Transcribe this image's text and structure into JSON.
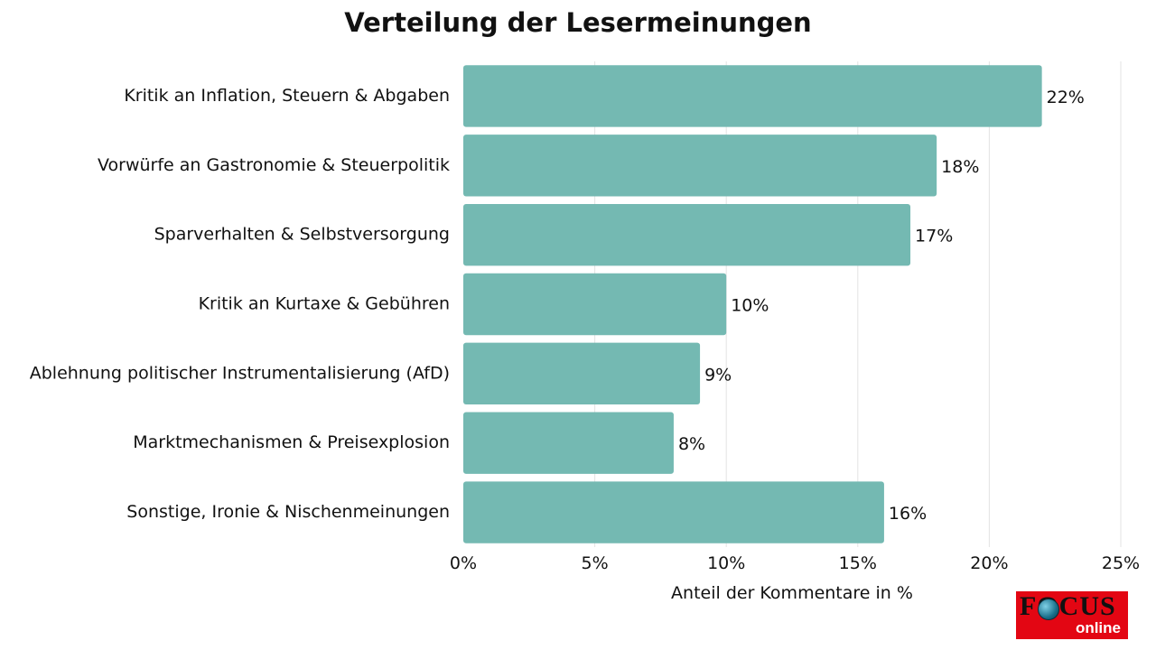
{
  "chart_data": {
    "type": "bar",
    "orientation": "horizontal",
    "title": "Verteilung der Lesermeinungen",
    "xlabel": "Anteil der Kommentare in %",
    "ylabel": "",
    "categories": [
      "Kritik an Inflation, Steuern & Abgaben",
      "Vorwürfe an Gastronomie & Steuerpolitik",
      "Sparverhalten & Selbstversorgung",
      "Kritik an Kurtaxe & Gebühren",
      "Ablehnung politischer Instrumentalisierung (AfD)",
      "Marktmechanismen & Preisexplosion",
      "Sonstige, Ironie & Nischenmeinungen"
    ],
    "values": [
      22,
      18,
      17,
      10,
      9,
      8,
      16
    ],
    "value_labels": [
      "22%",
      "18%",
      "17%",
      "10%",
      "9%",
      "8%",
      "16%"
    ],
    "xlim": [
      0,
      25
    ],
    "xticks": [
      0,
      5,
      10,
      15,
      20,
      25
    ],
    "xtick_labels": [
      "0%",
      "5%",
      "10%",
      "15%",
      "20%",
      "25%"
    ],
    "grid": "vertical",
    "colors": {
      "bar": "#74b9b2",
      "grid": "#e3e3e3",
      "text": "#111111"
    }
  },
  "logo": {
    "word": "FOCUS",
    "sub": "online",
    "icon": "globe-icon",
    "color": "#e30613"
  }
}
